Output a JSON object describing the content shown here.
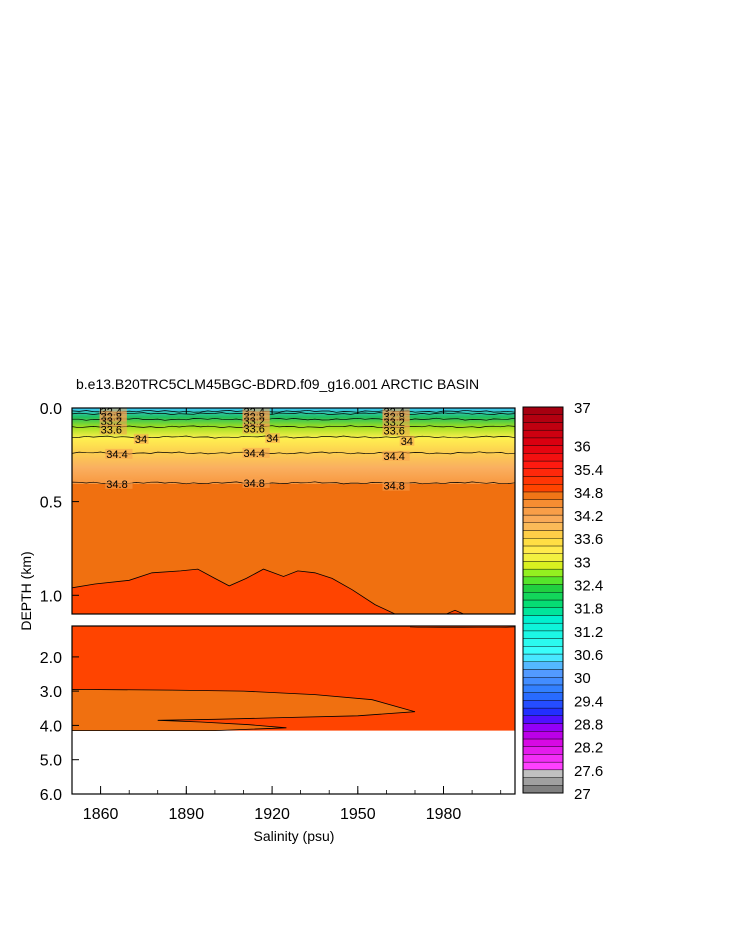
{
  "chart_data": {
    "type": "heatmap",
    "title": "b.e13.B20TRC5CLM45BGC-BDRD.f09_g16.001 ARCTIC BASIN",
    "xlabel": "Salinity (psu)",
    "ylabel": "DEPTH (km)",
    "xlim": [
      1850,
      2005
    ],
    "x_ticks": [
      "1860",
      "1890",
      "1920",
      "1950",
      "1980"
    ],
    "x_tick_values": [
      1860,
      1890,
      1920,
      1950,
      1980
    ],
    "upper_panel": {
      "ylim": [
        0.0,
        1.1
      ],
      "y_ticks": [
        "0.0",
        "0.5",
        "1.0"
      ],
      "y_tick_values": [
        0.0,
        0.5,
        1.0
      ]
    },
    "lower_panel": {
      "ylim": [
        1.1,
        6.0
      ],
      "y_ticks": [
        "2.0",
        "3.0",
        "4.0",
        "5.0",
        "6.0"
      ],
      "y_tick_values": [
        2.0,
        3.0,
        4.0,
        5.0,
        6.0
      ],
      "data_bottom_depth_km": 4.15
    },
    "contour_lines": [
      {
        "value": 32.4,
        "depth_km": 0.018
      },
      {
        "value": 32.8,
        "depth_km": 0.03
      },
      {
        "value": 33.2,
        "depth_km": 0.06
      },
      {
        "value": 33.6,
        "depth_km": 0.1
      },
      {
        "value": 34,
        "depth_km": 0.155
      },
      {
        "value": 34.4,
        "depth_km": 0.24
      },
      {
        "value": 34.8,
        "depth_km": 0.4
      }
    ],
    "contour_labels": [
      {
        "text": "32.4",
        "x": 1860,
        "depth_km": 0.02
      },
      {
        "text": "32.8",
        "x": 1860,
        "depth_km": 0.045
      },
      {
        "text": "33.2",
        "x": 1860,
        "depth_km": 0.07
      },
      {
        "text": "33.6",
        "x": 1860,
        "depth_km": 0.115
      },
      {
        "text": "34",
        "x": 1872,
        "depth_km": 0.165
      },
      {
        "text": "34.4",
        "x": 1862,
        "depth_km": 0.245
      },
      {
        "text": "34.8",
        "x": 1862,
        "depth_km": 0.405
      },
      {
        "text": "32.4",
        "x": 1910,
        "depth_km": 0.02
      },
      {
        "text": "32.8",
        "x": 1910,
        "depth_km": 0.045
      },
      {
        "text": "33.2",
        "x": 1910,
        "depth_km": 0.07
      },
      {
        "text": "33.6",
        "x": 1910,
        "depth_km": 0.11
      },
      {
        "text": "34",
        "x": 1918,
        "depth_km": 0.16
      },
      {
        "text": "34.4",
        "x": 1910,
        "depth_km": 0.24
      },
      {
        "text": "34.8",
        "x": 1910,
        "depth_km": 0.4
      },
      {
        "text": "32.4",
        "x": 1959,
        "depth_km": 0.02
      },
      {
        "text": "32.8",
        "x": 1959,
        "depth_km": 0.045
      },
      {
        "text": "33.2",
        "x": 1959,
        "depth_km": 0.075
      },
      {
        "text": "33.6",
        "x": 1959,
        "depth_km": 0.12
      },
      {
        "text": "34",
        "x": 1965,
        "depth_km": 0.175
      },
      {
        "text": "34.4",
        "x": 1959,
        "depth_km": 0.255
      },
      {
        "text": "34.8",
        "x": 1959,
        "depth_km": 0.415
      }
    ],
    "deep_34_8_boundary_upper": [
      {
        "x": 1850,
        "depth_km": 0.96
      },
      {
        "x": 1858,
        "depth_km": 0.94
      },
      {
        "x": 1870,
        "depth_km": 0.92
      },
      {
        "x": 1878,
        "depth_km": 0.88
      },
      {
        "x": 1888,
        "depth_km": 0.87
      },
      {
        "x": 1894,
        "depth_km": 0.86
      },
      {
        "x": 1900,
        "depth_km": 0.91
      },
      {
        "x": 1905,
        "depth_km": 0.95
      },
      {
        "x": 1911,
        "depth_km": 0.91
      },
      {
        "x": 1917,
        "depth_km": 0.86
      },
      {
        "x": 1924,
        "depth_km": 0.9
      },
      {
        "x": 1929,
        "depth_km": 0.87
      },
      {
        "x": 1935,
        "depth_km": 0.88
      },
      {
        "x": 1941,
        "depth_km": 0.91
      },
      {
        "x": 1948,
        "depth_km": 0.97
      },
      {
        "x": 1956,
        "depth_km": 1.05
      },
      {
        "x": 1963,
        "depth_km": 1.1
      }
    ],
    "deep_bump": [
      {
        "x": 1981,
        "depth_km": 1.1
      },
      {
        "x": 1984,
        "depth_km": 1.08
      },
      {
        "x": 1987,
        "depth_km": 1.1
      }
    ],
    "lower_tongue": [
      {
        "x": 1850,
        "depth_km": 2.95
      },
      {
        "x": 1885,
        "depth_km": 2.97
      },
      {
        "x": 1910,
        "depth_km": 3.0
      },
      {
        "x": 1935,
        "depth_km": 3.1
      },
      {
        "x": 1955,
        "depth_km": 3.25
      },
      {
        "x": 1970,
        "depth_km": 3.6
      },
      {
        "x": 1950,
        "depth_km": 3.72
      },
      {
        "x": 1920,
        "depth_km": 3.78
      },
      {
        "x": 1900,
        "depth_km": 3.82
      },
      {
        "x": 1880,
        "depth_km": 3.85
      },
      {
        "x": 1895,
        "depth_km": 3.9
      },
      {
        "x": 1912,
        "depth_km": 3.98
      },
      {
        "x": 1925,
        "depth_km": 4.07
      },
      {
        "x": 1900,
        "depth_km": 4.15
      },
      {
        "x": 1850,
        "depth_km": 4.15
      }
    ],
    "colorbar": {
      "min": 27,
      "max": 37,
      "tick_labels": [
        "37",
        "36",
        "35.4",
        "34.8",
        "34.2",
        "33.6",
        "33",
        "32.4",
        "31.8",
        "31.2",
        "30.6",
        "30",
        "29.4",
        "28.8",
        "28.2",
        "27.6",
        "27"
      ],
      "tick_values": [
        37,
        36,
        35.4,
        34.8,
        34.2,
        33.6,
        33,
        32.4,
        31.8,
        31.2,
        30.6,
        30,
        29.4,
        28.8,
        28.2,
        27.6,
        27
      ],
      "color_stops": [
        {
          "value": 27.0,
          "color": "#707070"
        },
        {
          "value": 27.5,
          "color": "#c0c0c0"
        },
        {
          "value": 27.7,
          "color": "#ff40ff"
        },
        {
          "value": 28.4,
          "color": "#d000e0"
        },
        {
          "value": 28.8,
          "color": "#8000ff"
        },
        {
          "value": 29.0,
          "color": "#2020ff"
        },
        {
          "value": 29.6,
          "color": "#2a7aff"
        },
        {
          "value": 30.2,
          "color": "#5aa0ff"
        },
        {
          "value": 30.6,
          "color": "#40ffff"
        },
        {
          "value": 31.5,
          "color": "#00f0d0"
        },
        {
          "value": 31.8,
          "color": "#00e080"
        },
        {
          "value": 32.3,
          "color": "#20d040"
        },
        {
          "value": 32.6,
          "color": "#70f020"
        },
        {
          "value": 32.9,
          "color": "#d8f020"
        },
        {
          "value": 33.2,
          "color": "#fff050"
        },
        {
          "value": 33.6,
          "color": "#ffd840"
        },
        {
          "value": 34.0,
          "color": "#fab060"
        },
        {
          "value": 34.4,
          "color": "#f89840"
        },
        {
          "value": 34.75,
          "color": "#f07010"
        },
        {
          "value": 34.9,
          "color": "#ff4400"
        },
        {
          "value": 35.5,
          "color": "#ff1a10"
        },
        {
          "value": 36.0,
          "color": "#e00010"
        },
        {
          "value": 37.0,
          "color": "#a00010"
        }
      ]
    }
  }
}
